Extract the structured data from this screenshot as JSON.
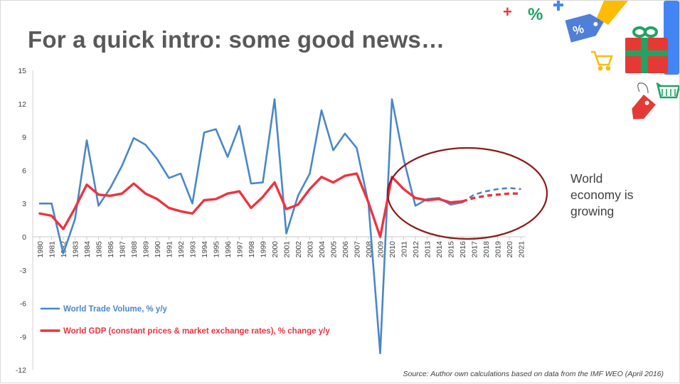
{
  "slide": {
    "title": "For a quick intro: some good news…",
    "side_note": [
      "World",
      "economy is",
      "growing"
    ],
    "source": "Source: Author own calculations based on data from the IMF WEO (April 2016)"
  },
  "decor": {
    "plus_sign": "+",
    "percent_sign": "%",
    "tag_percent": "%"
  },
  "chart_data": {
    "type": "line",
    "ylim": [
      -12,
      15
    ],
    "yticks": [
      -12,
      -9,
      -6,
      -3,
      0,
      3,
      6,
      9,
      12,
      15
    ],
    "x": [
      "1980",
      "1981",
      "1982",
      "1983",
      "1984",
      "1985",
      "1986",
      "1987",
      "1988",
      "1989",
      "1990",
      "1991",
      "1992",
      "1993",
      "1994",
      "1995",
      "1996",
      "1997",
      "1998",
      "1999",
      "2000",
      "2001",
      "2002",
      "2003",
      "2004",
      "2005",
      "2006",
      "2007",
      "2008",
      "2009",
      "2010",
      "2011",
      "2012",
      "2013",
      "2014",
      "2015",
      "2016",
      "2017",
      "2018",
      "2019",
      "2020",
      "2021"
    ],
    "forecast_start": "2016",
    "series": [
      {
        "name": "World Trade Volume, % y/y",
        "color": "#4a86c8",
        "values": [
          3.0,
          3.0,
          -1.5,
          1.6,
          8.7,
          2.8,
          4.4,
          6.4,
          8.9,
          8.3,
          7.0,
          5.3,
          5.7,
          3.0,
          9.4,
          9.7,
          7.2,
          10.0,
          4.8,
          4.9,
          12.4,
          0.3,
          3.7,
          5.7,
          11.4,
          7.8,
          9.3,
          8.0,
          3.0,
          -10.5,
          12.4,
          7.0,
          2.8,
          3.4,
          3.5,
          2.9,
          3.1,
          3.8,
          4.1,
          4.3,
          4.4,
          4.3
        ]
      },
      {
        "name": "World GDP (constant prices & market exchange rates), % change y/y",
        "color": "#ee3340",
        "values": [
          2.1,
          1.9,
          0.7,
          2.6,
          4.7,
          3.8,
          3.7,
          3.9,
          4.8,
          3.9,
          3.4,
          2.6,
          2.3,
          2.1,
          3.3,
          3.4,
          3.9,
          4.1,
          2.6,
          3.6,
          4.9,
          2.5,
          2.9,
          4.3,
          5.4,
          4.9,
          5.5,
          5.7,
          3.1,
          0.0,
          5.4,
          4.3,
          3.5,
          3.3,
          3.4,
          3.1,
          3.2,
          3.5,
          3.7,
          3.8,
          3.9,
          3.9
        ]
      }
    ],
    "annotation": "World economy is growing"
  }
}
